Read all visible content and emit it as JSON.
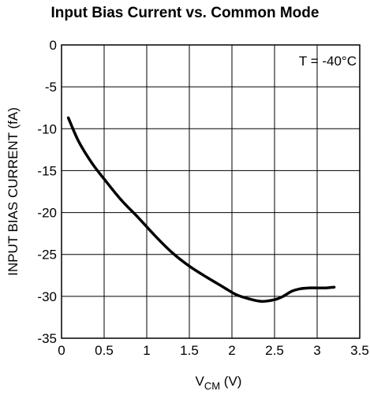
{
  "chart_data": {
    "type": "line",
    "title": "Input Bias Current vs. Common Mode",
    "xlabel_main": "V",
    "xlabel_sub": "CM",
    "xlabel_unit": " (V)",
    "ylabel": "INPUT BIAS CURRENT (fA)",
    "annotation": "T = -40°C",
    "xlim": [
      0,
      3.5
    ],
    "ylim": [
      -35,
      0
    ],
    "xticks": [
      0,
      0.5,
      1,
      1.5,
      2,
      2.5,
      3,
      3.5
    ],
    "xtick_labels": [
      "0",
      "0.5",
      "1",
      "1.5",
      "2",
      "2.5",
      "3",
      "3.5"
    ],
    "yticks": [
      0,
      -5,
      -10,
      -15,
      -20,
      -25,
      -30,
      -35
    ],
    "ytick_labels": [
      "0",
      "-5",
      "-10",
      "-15",
      "-20",
      "-25",
      "-30",
      "-35"
    ],
    "grid": true,
    "series": [
      {
        "x": [
          0.08,
          0.2,
          0.35,
          0.5,
          0.7,
          0.9,
          1.1,
          1.3,
          1.5,
          1.7,
          1.9,
          2.05,
          2.2,
          2.35,
          2.5,
          2.6,
          2.7,
          2.8,
          2.9,
          3.0,
          3.1,
          3.2
        ],
        "y": [
          -8.7,
          -11.5,
          -14.0,
          -16.0,
          -18.5,
          -20.6,
          -22.8,
          -24.8,
          -26.4,
          -27.7,
          -28.9,
          -29.8,
          -30.3,
          -30.6,
          -30.4,
          -30.0,
          -29.4,
          -29.1,
          -29.0,
          -29.0,
          -29.0,
          -28.9
        ]
      }
    ]
  }
}
